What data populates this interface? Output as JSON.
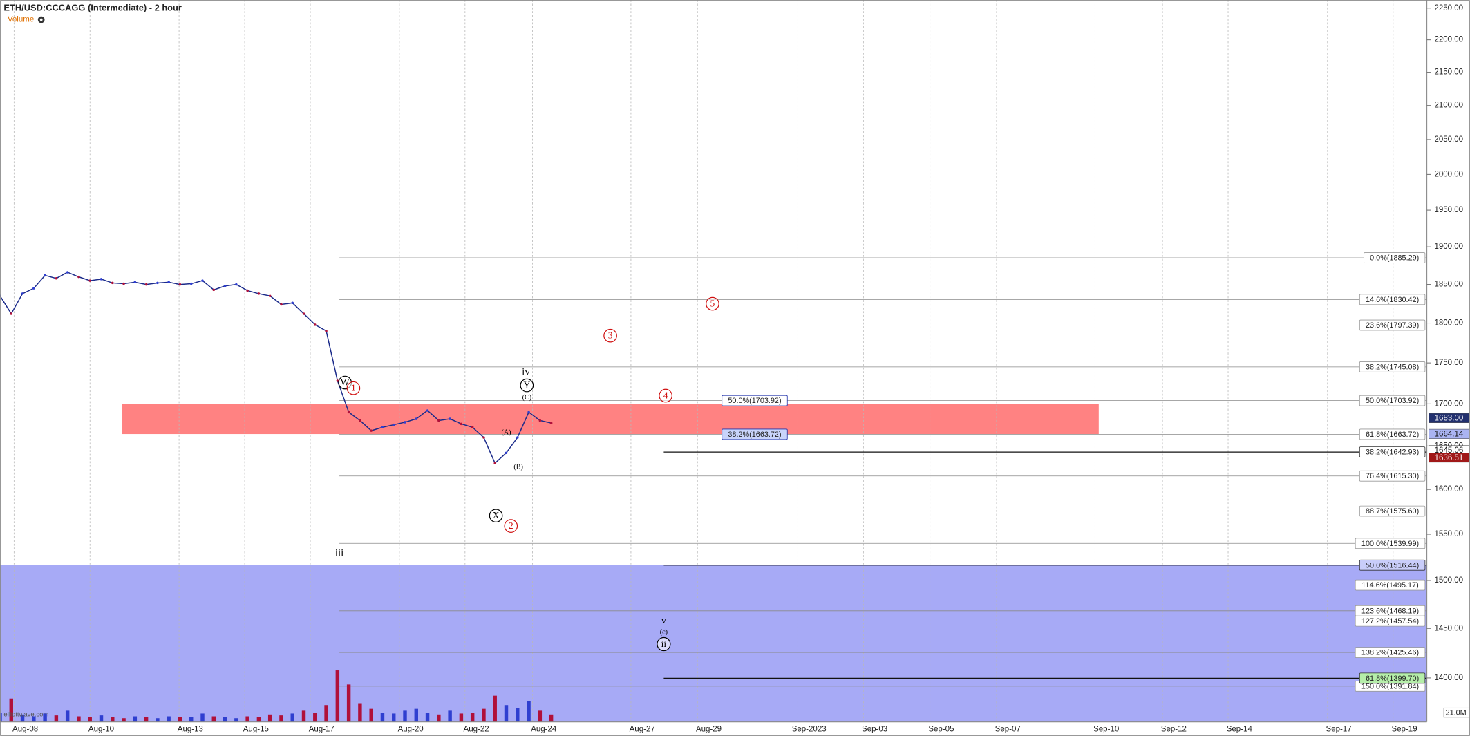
{
  "chart_data": {
    "type": "line",
    "title": "ETH/USD:CCCAGG (Intermediate) - 2 hour",
    "volume_title": "Volume",
    "watermark": "elliottwave.com",
    "log_scale": true,
    "ylim": [
      1357,
      2263
    ],
    "yticks": [
      {
        "value": 1400,
        "label": "1400.00"
      },
      {
        "value": 1450,
        "label": "1450.00"
      },
      {
        "value": 1500,
        "label": "1500.00"
      },
      {
        "value": 1550,
        "label": "1550.00"
      },
      {
        "value": 1600,
        "label": "1600.00"
      },
      {
        "value": 1650,
        "label": "1650.00"
      },
      {
        "value": 1700,
        "label": "1700.00"
      },
      {
        "value": 1750,
        "label": "1750.00"
      },
      {
        "value": 1800,
        "label": "1800.00"
      },
      {
        "value": 1850,
        "label": "1850.00"
      },
      {
        "value": 1900,
        "label": "1900.00"
      },
      {
        "value": 1950,
        "label": "1950.00"
      },
      {
        "value": 2000,
        "label": "2000.00"
      },
      {
        "value": 2050,
        "label": "2050.00"
      },
      {
        "value": 2100,
        "label": "2100.00"
      },
      {
        "value": 2150,
        "label": "2150.00"
      },
      {
        "value": 2200,
        "label": "2200.00"
      },
      {
        "value": 2250,
        "label": "2250.00"
      }
    ],
    "categories": [
      "Aug-08",
      "Aug-10",
      "Aug-13",
      "Aug-15",
      "Aug-17",
      "Aug-20",
      "Aug-22",
      "Aug-24",
      "Aug-27",
      "Aug-29",
      "Sep-2023",
      "Sep-03",
      "Sep-05",
      "Sep-07",
      "Sep-10",
      "Sep-12",
      "Sep-14",
      "Sep-17",
      "Sep-19"
    ],
    "grid": true,
    "price": {
      "color": "#1a2a8a",
      "values": [
        1835,
        1812,
        1838,
        1845,
        1862,
        1858,
        1866,
        1860,
        1855,
        1857,
        1852,
        1851,
        1853,
        1850,
        1852,
        1853,
        1850,
        1851,
        1855,
        1843,
        1848,
        1850,
        1842,
        1838,
        1835,
        1824,
        1826,
        1812,
        1798,
        1790,
        1728,
        1690,
        1680,
        1668,
        1672,
        1675,
        1678,
        1682,
        1692,
        1680,
        1682,
        1676,
        1672,
        1660,
        1630,
        1642,
        1660,
        1690,
        1680,
        1677
      ]
    },
    "volume": {
      "up_color": "#2f3fd0",
      "down_color": "#b0103a",
      "vlim": [
        0,
        100
      ],
      "last_label": "21.0M",
      "values": [
        10,
        25,
        8,
        6,
        9,
        7,
        12,
        6,
        5,
        7,
        5,
        4,
        6,
        5,
        4,
        6,
        5,
        5,
        9,
        6,
        5,
        4,
        6,
        5,
        8,
        7,
        9,
        12,
        10,
        18,
        55,
        40,
        20,
        14,
        10,
        9,
        12,
        14,
        10,
        8,
        12,
        9,
        10,
        14,
        28,
        18,
        15,
        22,
        12,
        8
      ]
    },
    "zones": [
      {
        "top": 1700,
        "bottom": 1664,
        "color": "#ff7b7b"
      },
      {
        "top": 1516.44,
        "color": "#989bf5"
      }
    ],
    "fib_levels": [
      {
        "value": 1885.29,
        "label": "0.0%(1885.29)"
      },
      {
        "value": 1830.42,
        "label": "14.6%(1830.42)"
      },
      {
        "value": 1797.39,
        "label": "23.6%(1797.39)"
      },
      {
        "value": 1745.08,
        "label": "38.2%(1745.08)"
      },
      {
        "value": 1703.92,
        "label": "50.0%(1703.92)"
      },
      {
        "value": 1663.72,
        "label": "61.8%(1663.72)"
      },
      {
        "value": 1615.3,
        "label": "76.4%(1615.30)"
      },
      {
        "value": 1575.6,
        "label": "88.7%(1575.60)"
      },
      {
        "value": 1539.99,
        "label": "100.0%(1539.99)"
      },
      {
        "value": 1495.17,
        "label": "114.6%(1495.17)"
      },
      {
        "value": 1468.19,
        "label": "123.6%(1468.19)"
      },
      {
        "value": 1457.54,
        "label": "127.2%(1457.54)"
      },
      {
        "value": 1425.46,
        "label": "138.2%(1425.46)"
      },
      {
        "value": 1391.84,
        "label": "150.0%(1391.84)"
      }
    ],
    "fib_levels_2": [
      {
        "value": 1642.93,
        "label": "38.2%(1642.93)",
        "bg": "#ffffff"
      },
      {
        "value": 1516.44,
        "label": "50.0%(1516.44)",
        "bg": "#c9cdfa"
      },
      {
        "value": 1399.7,
        "label": "61.8%(1399.70)",
        "bg": "#b5eea9"
      }
    ],
    "fib_mid_labels": [
      {
        "value": 1703.92,
        "label": "50.0%(1703.92)",
        "bg": "#ffffff"
      },
      {
        "value": 1663.72,
        "label": "38.2%(1663.72)",
        "bg": "#c9d4fb"
      }
    ],
    "price_badges": [
      {
        "value": 1683.0,
        "label": "1683.00",
        "bg": "#22306e",
        "fg": "#ffffff"
      },
      {
        "value": 1664.14,
        "label": "1664.14",
        "bg": "#aab4f2",
        "fg": "#111111"
      },
      {
        "value": 1645.06,
        "label": "1645.06",
        "bg": "#ffffff",
        "fg": "#111111"
      },
      {
        "value": 1636.51,
        "label": "1636.51",
        "bg": "#a01818",
        "fg": "#ffffff"
      }
    ],
    "annotations": [
      {
        "text": "W",
        "color": "#000000",
        "circled": true
      },
      {
        "text": "1",
        "color": "#d01010",
        "circled": true
      },
      {
        "text": "iii",
        "color": "#000000",
        "circled": false
      },
      {
        "text": "X",
        "color": "#000000",
        "circled": true
      },
      {
        "text": "2",
        "color": "#d01010",
        "circled": true
      },
      {
        "text": "(A)",
        "color": "#000000",
        "circled": false
      },
      {
        "text": "(B)",
        "color": "#000000",
        "circled": false
      },
      {
        "text": "(C)",
        "color": "#000000",
        "circled": false
      },
      {
        "text": "Y",
        "color": "#000000",
        "circled": true
      },
      {
        "text": "iv",
        "color": "#000000",
        "circled": false
      },
      {
        "text": "3",
        "color": "#d01010",
        "circled": true
      },
      {
        "text": "4",
        "color": "#d01010",
        "circled": true
      },
      {
        "text": "5",
        "color": "#d01010",
        "circled": true
      },
      {
        "text": "v",
        "color": "#000000",
        "circled": false
      },
      {
        "text": "(c)",
        "color": "#000000",
        "circled": false
      },
      {
        "text": "ii",
        "color": "#000000",
        "circled": true
      }
    ]
  }
}
